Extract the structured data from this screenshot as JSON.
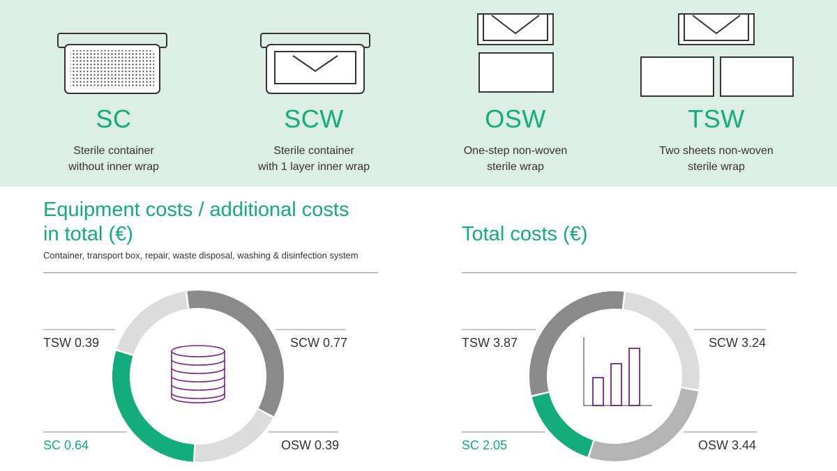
{
  "methods": [
    {
      "code": "SC",
      "desc1": "Sterile container",
      "desc2": "without inner wrap",
      "icon": "sterile-container-icon"
    },
    {
      "code": "SCW",
      "desc1": "Sterile container",
      "desc2": "with 1 layer inner wrap",
      "icon": "container-with-wrap-icon"
    },
    {
      "code": "OSW",
      "desc1": "One-step non-woven",
      "desc2": "sterile wrap",
      "icon": "one-step-wrap-icon"
    },
    {
      "code": "TSW",
      "desc1": "Two sheets non-woven",
      "desc2": "sterile wrap",
      "icon": "two-sheets-wrap-icon"
    }
  ],
  "left_section": {
    "title_line1": "Equipment costs / additional costs",
    "title_line2": "in total (€)",
    "subtitle": "Container, transport box, repair, waste disposal, washing & disinfection system",
    "center_icon": "coin-stack-icon"
  },
  "right_section": {
    "title": "Total costs (€)",
    "center_icon": "bar-chart-icon"
  },
  "colors": {
    "accent": "#12ad7b",
    "band": "#dcefe5",
    "purple": "#7b1f8e",
    "SCW_left": "#8a8a8a",
    "OSW_left": "#dcdcdc",
    "TSW_left": "#dcdcdc",
    "SCW_right": "#dcdcdc",
    "OSW_right": "#b4b4b4",
    "TSW_right": "#8a8a8a"
  },
  "chart_data": [
    {
      "type": "pie",
      "donut": true,
      "title": "Equipment costs / additional costs in total (€)",
      "categories": [
        "SCW",
        "OSW",
        "SC",
        "TSW"
      ],
      "values": [
        0.77,
        0.39,
        0.64,
        0.39
      ],
      "labels": [
        "SCW 0.77",
        "OSW 0.39",
        "SC 0.64",
        "TSW 0.39"
      ]
    },
    {
      "type": "pie",
      "donut": true,
      "title": "Total costs (€)",
      "categories": [
        "SCW",
        "OSW",
        "SC",
        "TSW"
      ],
      "values": [
        3.24,
        3.44,
        2.05,
        3.87
      ],
      "labels": [
        "SCW 3.24",
        "OSW 3.44",
        "SC 2.05",
        "TSW 3.87"
      ]
    }
  ]
}
